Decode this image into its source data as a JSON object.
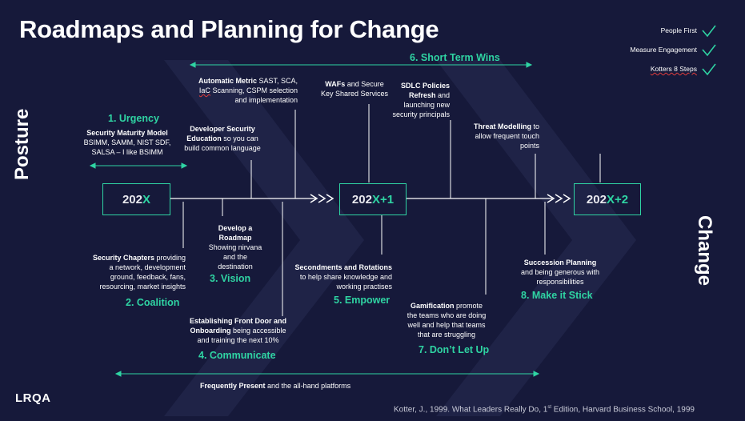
{
  "title": "Roadmaps and Planning for Change",
  "side_labels": {
    "left": "Posture",
    "right": "Change"
  },
  "legend": [
    "People First",
    "Measure Engagement",
    "Kotters 8 Steps"
  ],
  "milestones": [
    {
      "prefix": "202",
      "suffix": "X"
    },
    {
      "prefix": "202",
      "suffix": "X+1"
    },
    {
      "prefix": "202",
      "suffix": "X+2"
    }
  ],
  "steps": {
    "s1": "1. Urgency",
    "s2": "2. Coalition",
    "s3": "3. Vision",
    "s4": "4. Communicate",
    "s5": "5. Empower",
    "s6": "6. Short Term Wins",
    "s7": "7. Don’t Let Up",
    "s8": "8. Make it Stick"
  },
  "notes": {
    "urgency_bold": "Security Maturity Model",
    "urgency_l2": "BSIMM, SAMM, NIST SDF,",
    "urgency_l3": "SALSA – I like BSIMM",
    "chapters_bold": "Security Chapters",
    "chapters_l1": " providing",
    "chapters_l2": "a network, development",
    "chapters_l3": "ground, feedback, fans,",
    "chapters_l4": "resourcing, market insights",
    "devsec_bold_1": "Developer Security",
    "devsec_bold_2": "Education",
    "devsec_l2": " so you can",
    "devsec_l3": "build common language",
    "roadmap_bold_1": "Develop a",
    "roadmap_bold_2": "Roadmap",
    "roadmap_l3": "Showing nirvana",
    "roadmap_l4": "and the",
    "roadmap_l5": "destination",
    "automatic_bold": "Automatic Metric",
    "automatic_l1": " SAST, SCA,",
    "automatic_l2_u": "IaC",
    "automatic_l2": " Scanning, CSPM selection",
    "automatic_l3": "and implementation",
    "frontdoor_bold_1": "Establishing Front Door and",
    "frontdoor_bold_2": "Onboarding",
    "frontdoor_l2": " being accessible",
    "frontdoor_l3": "and training the next 10%",
    "wafs_bold": "WAFs",
    "wafs_l1": " and Secure",
    "wafs_l2": "Key Shared Services",
    "secondments_bold": "Secondments and Rotations",
    "secondments_l2": "to help share knowledge and",
    "secondments_l3": "working practises",
    "sdlc_bold_1": "SDLC Policies",
    "sdlc_bold_2": "Refresh",
    "sdlc_l2": " and",
    "sdlc_l3": "launching new",
    "sdlc_l4": "security principals",
    "gamification_bold": "Gamification",
    "gamification_l1": " promote",
    "gamification_l2": "the teams who are doing",
    "gamification_l3": "well and help that teams",
    "gamification_l4": "that are struggling",
    "threat_bold": "Threat Modelling",
    "threat_l1": " to",
    "threat_l2": "allow frequent touch",
    "threat_l3": "points",
    "succession_bold": "Succession Planning",
    "succession_l2": "and being generous with",
    "succession_l3": "responsibilities",
    "frequently_bold": "Frequently Present",
    "frequently_rest": " and the all-hand platforms"
  },
  "citation": {
    "pre": "Kotter, J., 1999. What Leaders Really Do, 1",
    "sup": "st",
    "post": " Edition, Harvard Business School, 1999"
  },
  "logo": "LRQA",
  "colors": {
    "background": "#16193a",
    "accent": "#2fd4a3",
    "text": "#ffffff",
    "check": "#2fd4a3"
  }
}
